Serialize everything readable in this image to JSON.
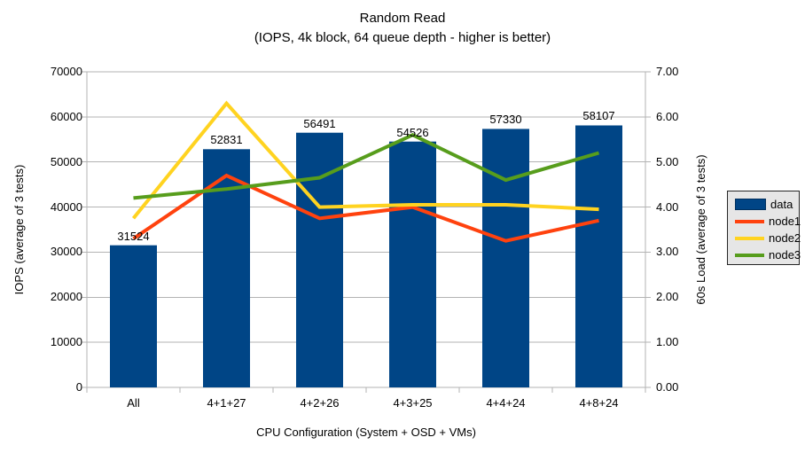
{
  "chart_data": {
    "type": "bar",
    "title": "Random Read",
    "subtitle": "(IOPS, 4k block, 64 queue depth - higher is better)",
    "categories": [
      "All",
      "4+1+27",
      "4+2+26",
      "4+3+25",
      "4+4+24",
      "4+8+24"
    ],
    "bar_series": {
      "name": "data",
      "axis": "left",
      "color": "#004586",
      "values": [
        31524,
        52831,
        56491,
        54526,
        57330,
        58107
      ],
      "labels": [
        "31524",
        "52831",
        "56491",
        "54526",
        "57330",
        "58107"
      ]
    },
    "line_series": [
      {
        "name": "node1",
        "axis": "right",
        "color": "#ff420e",
        "values": [
          3.3,
          4.7,
          3.75,
          4.0,
          3.25,
          3.7
        ]
      },
      {
        "name": "node2",
        "axis": "right",
        "color": "#ffd320",
        "values": [
          3.75,
          6.3,
          4.0,
          4.05,
          4.05,
          3.95
        ]
      },
      {
        "name": "node3",
        "axis": "right",
        "color": "#579d1c",
        "values": [
          4.2,
          4.4,
          4.65,
          5.6,
          4.6,
          5.2
        ]
      }
    ],
    "left_axis": {
      "label": "IOPS (average of 3 tests)",
      "min": 0,
      "max": 70000,
      "step": 10000,
      "tick_labels": [
        "0",
        "10000",
        "20000",
        "30000",
        "40000",
        "50000",
        "60000",
        "70000"
      ]
    },
    "right_axis": {
      "label": "60s Load (average of 3 tests)",
      "min": 0,
      "max": 7,
      "step": 1,
      "tick_labels": [
        "0.00",
        "1.00",
        "2.00",
        "3.00",
        "4.00",
        "5.00",
        "6.00",
        "7.00"
      ]
    },
    "x_axis": {
      "label": "CPU Configuration (System + OSD + VMs)"
    },
    "legend": {
      "position": "right",
      "entries": [
        {
          "label": "data",
          "type": "bar",
          "color": "#004586"
        },
        {
          "label": "node1",
          "type": "line",
          "color": "#ff420e"
        },
        {
          "label": "node2",
          "type": "line",
          "color": "#ffd320"
        },
        {
          "label": "node3",
          "type": "line",
          "color": "#579d1c"
        }
      ]
    },
    "grid": true,
    "colors": {
      "grid_and_axis": "#b3b3b3",
      "legend_background": "#e6e6e6",
      "text": "#000000"
    }
  }
}
